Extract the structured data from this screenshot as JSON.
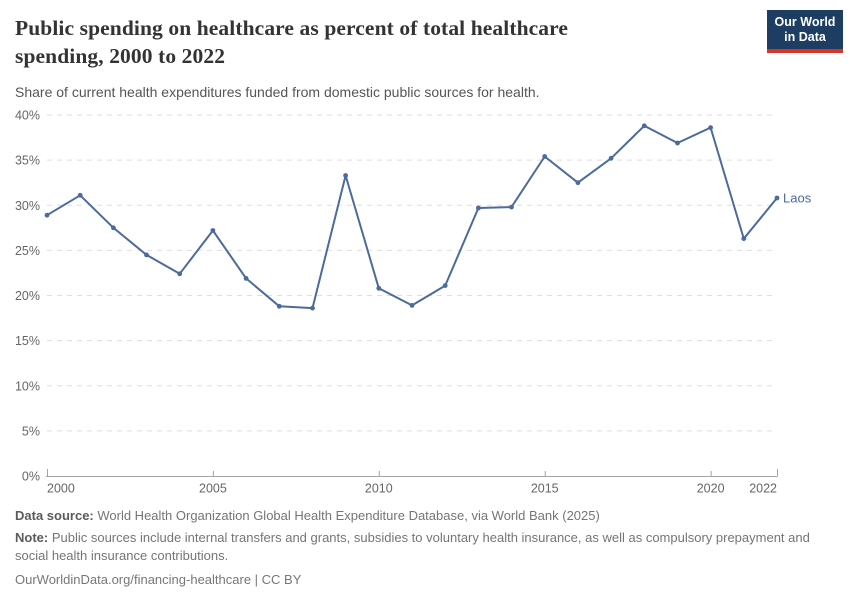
{
  "header": {
    "title": "Public spending on healthcare as percent of total healthcare spending, 2000 to 2022",
    "subtitle": "Share of current health expenditures funded from domestic public sources for health."
  },
  "logo": {
    "line1": "Our World",
    "line2": "in Data",
    "bg_color": "#1d3d63",
    "accent_color": "#d7352a"
  },
  "chart_data": {
    "type": "line",
    "title": "Public spending on healthcare as percent of total healthcare spending, 2000 to 2022",
    "x": [
      2000,
      2001,
      2002,
      2003,
      2004,
      2005,
      2006,
      2007,
      2008,
      2009,
      2010,
      2011,
      2012,
      2013,
      2014,
      2015,
      2016,
      2017,
      2018,
      2019,
      2020,
      2021,
      2022
    ],
    "series": [
      {
        "name": "Laos",
        "color": "#4c6a9c",
        "values": [
          28.9,
          31.1,
          27.5,
          24.5,
          22.4,
          27.2,
          21.9,
          18.8,
          18.6,
          33.3,
          20.8,
          18.9,
          21.1,
          29.7,
          29.8,
          35.4,
          32.5,
          35.2,
          38.8,
          36.9,
          38.6,
          26.3,
          30.8
        ]
      }
    ],
    "xlabel": "",
    "ylabel": "",
    "ylim": [
      0,
      40
    ],
    "yticks": [
      0,
      5,
      10,
      15,
      20,
      25,
      30,
      35,
      40
    ],
    "ytick_suffix": "%",
    "xticks": [
      2000,
      2005,
      2010,
      2015,
      2020,
      2022
    ],
    "grid": true,
    "grid_color": "#dedede",
    "axis_color": "#a3a3a3",
    "tick_label_color": "#666666",
    "legend_position": "end-of-line"
  },
  "footer": {
    "data_source_label": "Data source:",
    "data_source_text": " World Health Organization Global Health Expenditure Database, via World Bank (2025)",
    "note_label": "Note:",
    "note_text": " Public sources include internal transfers and grants, subsidies to voluntary health insurance, as well as compulsory prepayment and social health insurance contributions.",
    "link": "OurWorldinData.org/financing-healthcare | CC BY"
  }
}
